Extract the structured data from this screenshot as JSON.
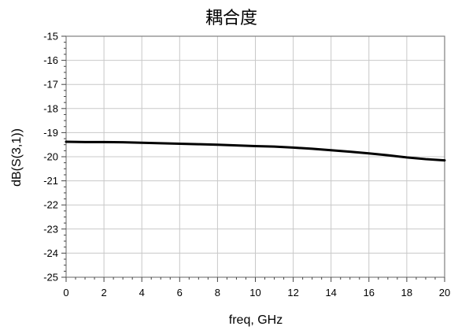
{
  "chart_data": {
    "type": "line",
    "title": "耦合度",
    "xlabel": "freq, GHz",
    "ylabel": "dB(S(3,1))",
    "xlim": [
      0,
      20
    ],
    "ylim": [
      -25,
      -15
    ],
    "x_ticks": [
      "0",
      "2",
      "4",
      "6",
      "8",
      "10",
      "12",
      "14",
      "16",
      "18",
      "20"
    ],
    "y_ticks": [
      "-15",
      "-16",
      "-17",
      "-18",
      "-19",
      "-20",
      "-21",
      "-22",
      "-23",
      "-24",
      "-25"
    ],
    "grid": true,
    "series": [
      {
        "color": "#000000",
        "x": [
          0,
          1,
          2,
          3,
          4,
          5,
          6,
          7,
          8,
          9,
          10,
          11,
          12,
          13,
          14,
          15,
          16,
          17,
          18,
          19,
          20
        ],
        "y": [
          -19.38,
          -19.39,
          -19.39,
          -19.4,
          -19.42,
          -19.44,
          -19.46,
          -19.48,
          -19.5,
          -19.53,
          -19.56,
          -19.58,
          -19.62,
          -19.67,
          -19.73,
          -19.79,
          -19.86,
          -19.94,
          -20.03,
          -20.1,
          -20.15
        ]
      }
    ]
  }
}
